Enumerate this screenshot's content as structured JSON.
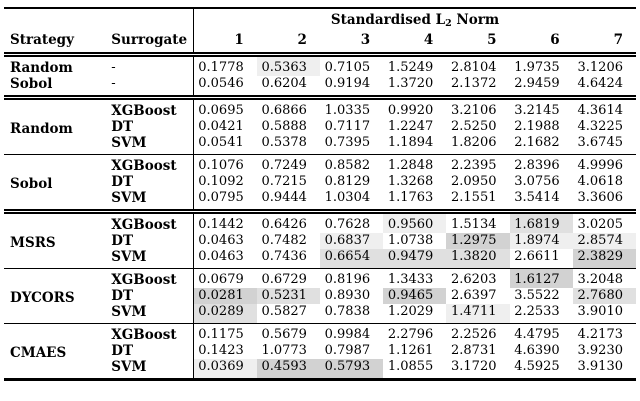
{
  "chart_data": {
    "type": "table",
    "title_pre": "Standardised L",
    "title_sub": "2",
    "title_post": " Norm",
    "header": {
      "strategy": "Strategy",
      "surrogate": "Surrogate"
    },
    "norm_columns": [
      "1",
      "2",
      "3",
      "4",
      "5",
      "6",
      "7"
    ],
    "heat_colors": {
      "1": "#d2d2d2",
      "2": "#e0e0e0",
      "3": "#efefef"
    },
    "heat_legend": "gray shading marks the three lowest values per column; darkest is lowest",
    "sections": [
      {
        "rule_after": "double",
        "rows": [
          {
            "strategy": "Random",
            "surrogate": "-",
            "values": [
              "0.1778",
              "0.5363",
              "0.7105",
              "1.5249",
              "2.8104",
              "1.9735",
              "3.1206"
            ],
            "marks": [
              0,
              3,
              0,
              0,
              0,
              0,
              0
            ]
          },
          {
            "strategy": "Sobol",
            "surrogate": "-",
            "values": [
              "0.0546",
              "0.6204",
              "0.9194",
              "1.3720",
              "2.1372",
              "2.9459",
              "4.6424"
            ],
            "marks": [
              0,
              0,
              0,
              0,
              0,
              0,
              0
            ]
          }
        ]
      },
      {
        "strategy": "Random",
        "rule_after": "single",
        "rows": [
          {
            "surrogate": "XGBoost",
            "values": [
              "0.0695",
              "0.6866",
              "1.0335",
              "0.9920",
              "3.2106",
              "3.2145",
              "4.3614"
            ],
            "marks": [
              0,
              0,
              0,
              0,
              0,
              0,
              0
            ]
          },
          {
            "surrogate": "DT",
            "values": [
              "0.0421",
              "0.5888",
              "0.7117",
              "1.2247",
              "2.5250",
              "2.1988",
              "4.3225"
            ],
            "marks": [
              0,
              0,
              0,
              0,
              0,
              0,
              0
            ]
          },
          {
            "surrogate": "SVM",
            "values": [
              "0.0541",
              "0.5378",
              "0.7395",
              "1.1894",
              "1.8206",
              "2.1682",
              "3.6745"
            ],
            "marks": [
              0,
              0,
              0,
              0,
              0,
              0,
              0
            ]
          }
        ]
      },
      {
        "strategy": "Sobol",
        "rule_after": "double",
        "rows": [
          {
            "surrogate": "XGBoost",
            "values": [
              "0.1076",
              "0.7249",
              "0.8582",
              "1.2848",
              "2.2395",
              "2.8396",
              "4.9996"
            ],
            "marks": [
              0,
              0,
              0,
              0,
              0,
              0,
              0
            ]
          },
          {
            "surrogate": "DT",
            "values": [
              "0.1092",
              "0.7215",
              "0.8129",
              "1.3268",
              "2.0950",
              "3.0756",
              "4.0618"
            ],
            "marks": [
              0,
              0,
              0,
              0,
              0,
              0,
              0
            ]
          },
          {
            "surrogate": "SVM",
            "values": [
              "0.0795",
              "0.9444",
              "1.0304",
              "1.1763",
              "2.1551",
              "3.5414",
              "3.3606"
            ],
            "marks": [
              0,
              0,
              0,
              0,
              0,
              0,
              0
            ]
          }
        ]
      },
      {
        "strategy": "MSRS",
        "rule_after": "single",
        "rows": [
          {
            "surrogate": "XGBoost",
            "values": [
              "0.1442",
              "0.6426",
              "0.7628",
              "0.9560",
              "1.5134",
              "1.6819",
              "3.0205"
            ],
            "marks": [
              0,
              0,
              0,
              3,
              0,
              2,
              0
            ]
          },
          {
            "surrogate": "DT",
            "values": [
              "0.0463",
              "0.7482",
              "0.6837",
              "1.0738",
              "1.2975",
              "1.8974",
              "2.8574"
            ],
            "marks": [
              0,
              0,
              3,
              0,
              1,
              3,
              3
            ]
          },
          {
            "surrogate": "SVM",
            "values": [
              "0.0463",
              "0.7436",
              "0.6654",
              "0.9479",
              "1.3820",
              "2.6611",
              "2.3829"
            ],
            "marks": [
              0,
              0,
              2,
              2,
              2,
              0,
              1
            ]
          }
        ]
      },
      {
        "strategy": "DYCORS",
        "rule_after": "single",
        "rows": [
          {
            "surrogate": "XGBoost",
            "values": [
              "0.0679",
              "0.6729",
              "0.8196",
              "1.3433",
              "2.6203",
              "1.6127",
              "3.2048"
            ],
            "marks": [
              0,
              0,
              0,
              0,
              0,
              1,
              0
            ]
          },
          {
            "surrogate": "DT",
            "values": [
              "0.0281",
              "0.5231",
              "0.8930",
              "0.9465",
              "2.6397",
              "3.5522",
              "2.7680"
            ],
            "marks": [
              1,
              2,
              0,
              1,
              0,
              0,
              2
            ]
          },
          {
            "surrogate": "SVM",
            "values": [
              "0.0289",
              "0.5827",
              "0.7838",
              "1.2029",
              "1.4711",
              "2.2533",
              "3.9010"
            ],
            "marks": [
              2,
              0,
              0,
              0,
              3,
              0,
              0
            ]
          }
        ]
      },
      {
        "strategy": "CMAES",
        "rule_after": "none",
        "rows": [
          {
            "surrogate": "XGBoost",
            "values": [
              "0.1175",
              "0.5679",
              "0.9984",
              "2.2796",
              "2.2526",
              "4.4795",
              "4.2173"
            ],
            "marks": [
              0,
              0,
              0,
              0,
              0,
              0,
              0
            ]
          },
          {
            "surrogate": "DT",
            "values": [
              "0.1423",
              "1.0773",
              "0.7987",
              "1.1261",
              "2.8731",
              "4.6390",
              "3.9230"
            ],
            "marks": [
              0,
              0,
              0,
              0,
              0,
              0,
              0
            ]
          },
          {
            "surrogate": "SVM",
            "values": [
              "0.0369",
              "0.4593",
              "0.5793",
              "1.0855",
              "3.1720",
              "4.5925",
              "3.9130"
            ],
            "marks": [
              3,
              1,
              1,
              0,
              0,
              0,
              0
            ]
          }
        ]
      }
    ]
  }
}
